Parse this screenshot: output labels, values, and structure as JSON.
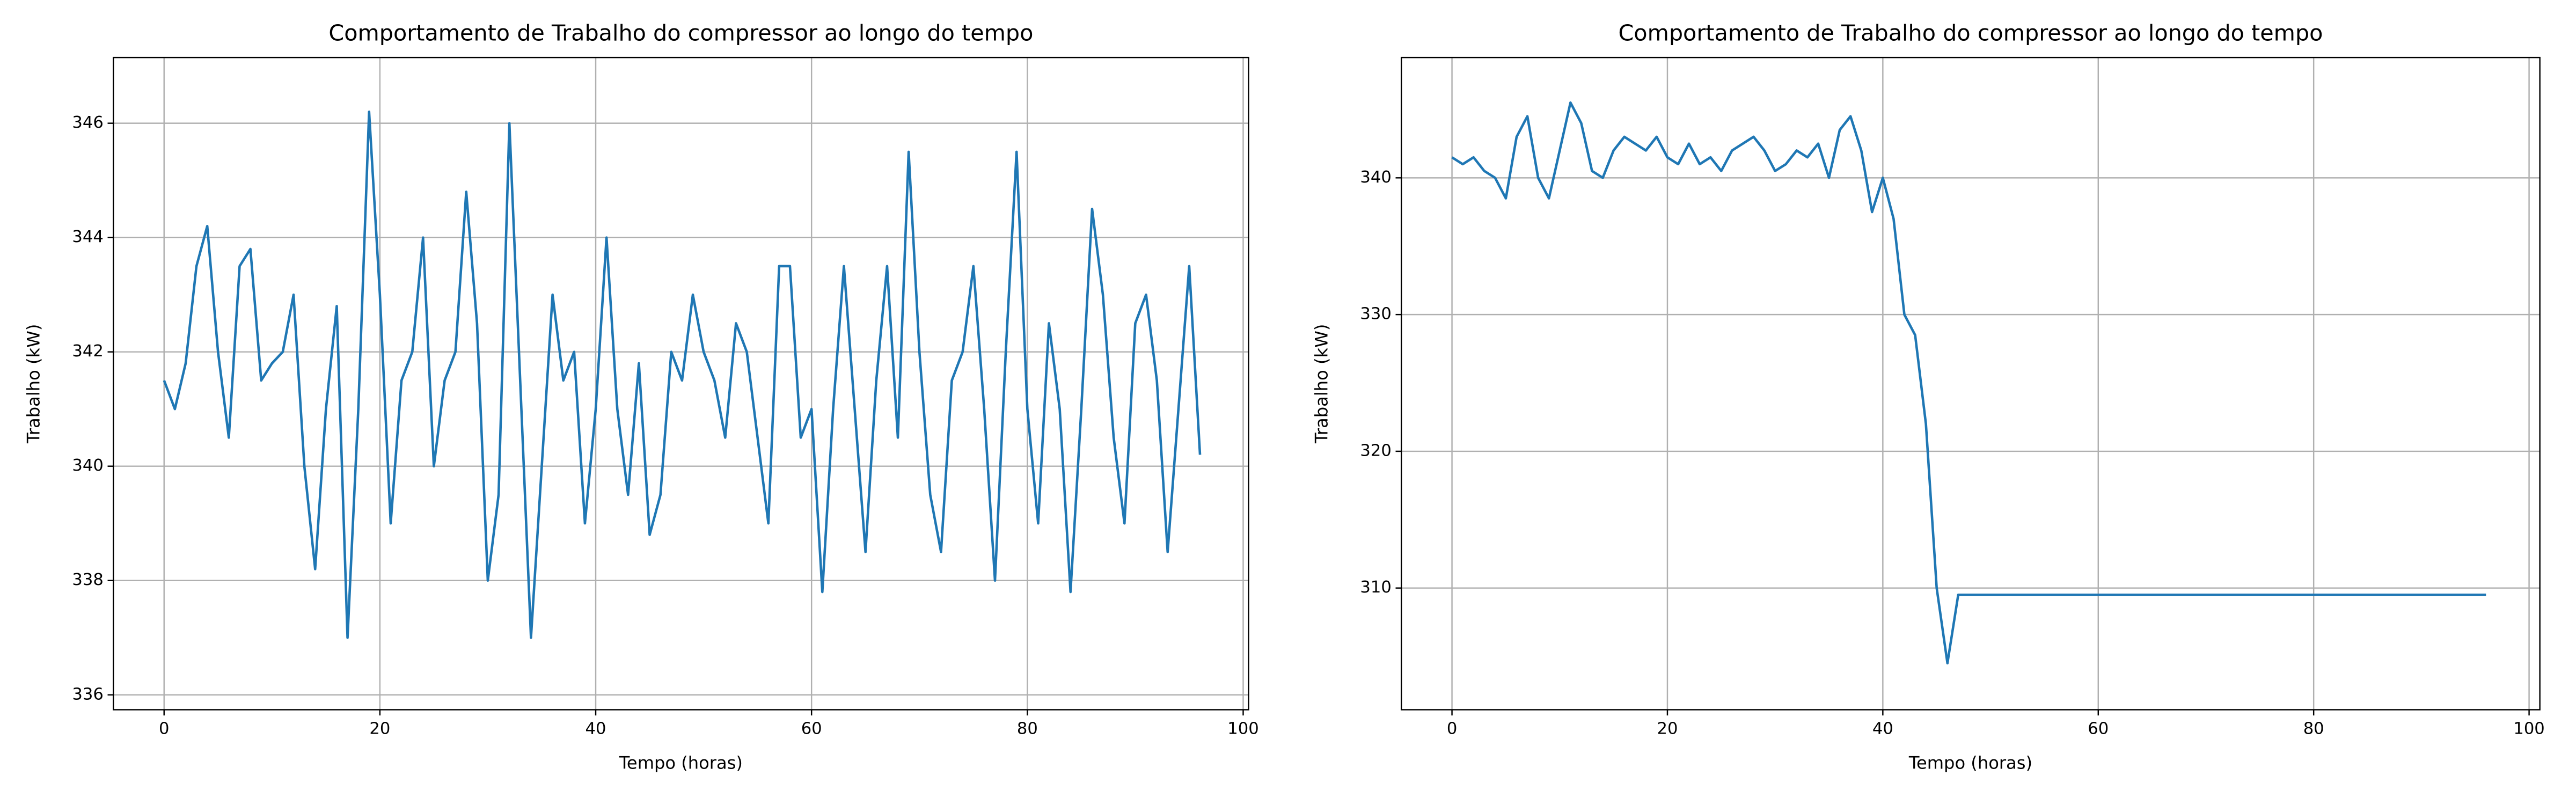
{
  "chart_data": [
    {
      "type": "line",
      "title": "Comportamento de Trabalho do compressor ao longo do tempo",
      "xlabel": "Tempo (horas)",
      "ylabel": "Trabalho (kW)",
      "x": [
        0,
        1,
        2,
        3,
        4,
        5,
        6,
        7,
        8,
        9,
        10,
        11,
        12,
        13,
        14,
        15,
        16,
        17,
        18,
        19,
        20,
        21,
        22,
        23,
        24,
        25,
        26,
        27,
        28,
        29,
        30,
        31,
        32,
        33,
        34,
        35,
        36,
        37,
        38,
        39,
        40,
        41,
        42,
        43,
        44,
        45,
        46,
        47,
        48,
        49,
        50,
        51,
        52,
        53,
        54,
        55,
        56,
        57,
        58,
        59,
        60,
        61,
        62,
        63,
        64,
        65,
        66,
        67,
        68,
        69,
        70,
        71,
        72,
        73,
        74,
        75,
        76,
        77,
        78,
        79,
        80,
        81,
        82,
        83,
        84,
        85,
        86,
        87,
        88,
        89,
        90,
        91,
        92,
        93,
        94,
        95,
        96
      ],
      "series": [
        {
          "color": "#1f77b4",
          "values": [
            341.5,
            341,
            341.8,
            343.5,
            344.2,
            342,
            340.5,
            343.5,
            343.8,
            341.5,
            341.8,
            342,
            343,
            340,
            338.2,
            341,
            342.8,
            337,
            341,
            346.2,
            343,
            339,
            341.5,
            342,
            344,
            340,
            341.5,
            342,
            344.8,
            342.5,
            338,
            339.5,
            346,
            341.5,
            337,
            340,
            343,
            341.5,
            342,
            339,
            341,
            344,
            341,
            339.5,
            341.8,
            338.8,
            339.5,
            342,
            341.5,
            343,
            342,
            341.5,
            340.5,
            342.5,
            342,
            340.5,
            339,
            343.5,
            343.5,
            340.5,
            341,
            337.8,
            341,
            343.5,
            341,
            338.5,
            341.5,
            343.5,
            340.5,
            345.5,
            342,
            339.5,
            338.5,
            341.5,
            342,
            343.5,
            341,
            338,
            342,
            345.5,
            341,
            339,
            342.5,
            341,
            337.8,
            341,
            344.5,
            343,
            340.5,
            339,
            342.5,
            343,
            341.5,
            338.5,
            341,
            343.5,
            340.2
          ]
        }
      ],
      "xlim": [
        -4.7,
        100.5
      ],
      "ylim": [
        335.74,
        347.15
      ],
      "xticks": [
        0,
        20,
        40,
        60,
        80,
        100
      ],
      "yticks": [
        336,
        338,
        340,
        342,
        344,
        346
      ],
      "grid": true
    },
    {
      "type": "line",
      "title": "Comportamento de Trabalho do compressor ao longo do tempo",
      "xlabel": "Tempo (horas)",
      "ylabel": "Trabalho (kW)",
      "x": [
        0,
        1,
        2,
        3,
        4,
        5,
        6,
        7,
        8,
        9,
        10,
        11,
        12,
        13,
        14,
        15,
        16,
        17,
        18,
        19,
        20,
        21,
        22,
        23,
        24,
        25,
        26,
        27,
        28,
        29,
        30,
        31,
        32,
        33,
        34,
        35,
        36,
        37,
        38,
        39,
        40,
        41,
        42,
        43,
        44,
        45,
        46,
        47,
        48,
        49,
        50,
        51,
        52,
        53,
        54,
        55,
        56,
        57,
        58,
        59,
        60,
        61,
        62,
        63,
        64,
        65,
        66,
        67,
        68,
        69,
        70,
        71,
        72,
        73,
        74,
        75,
        76,
        77,
        78,
        79,
        80,
        81,
        82,
        83,
        84,
        85,
        86,
        87,
        88,
        89,
        90,
        91,
        92,
        93,
        94,
        95,
        96
      ],
      "series": [
        {
          "color": "#1f77b4",
          "values": [
            341.5,
            341,
            341.5,
            340.5,
            340,
            338.5,
            343,
            344.5,
            340,
            338.5,
            342,
            345.5,
            344,
            340.5,
            340,
            342,
            343,
            342.5,
            342,
            343,
            341.5,
            341,
            342.5,
            341,
            341.5,
            340.5,
            342,
            342.5,
            343,
            342,
            340.5,
            341,
            342,
            341.5,
            342.5,
            340,
            343.5,
            344.5,
            342,
            337.5,
            340,
            337,
            330,
            328.5,
            322,
            310,
            304.5,
            309.5,
            309.5,
            309.5,
            309.5,
            309.5,
            309.5,
            309.5,
            309.5,
            309.5,
            309.5,
            309.5,
            309.5,
            309.5,
            309.5,
            309.5,
            309.5,
            309.5,
            309.5,
            309.5,
            309.5,
            309.5,
            309.5,
            309.5,
            309.5,
            309.5,
            309.5,
            309.5,
            309.5,
            309.5,
            309.5,
            309.5,
            309.5,
            309.5,
            309.5,
            309.5,
            309.5,
            309.5,
            309.5,
            309.5,
            309.5,
            309.5,
            309.5,
            309.5,
            309.5,
            309.5,
            309.5,
            309.5,
            309.5,
            309.5,
            309.5
          ]
        }
      ],
      "xlim": [
        -4.7,
        101
      ],
      "ylim": [
        301.1,
        348.8
      ],
      "xticks": [
        0,
        20,
        40,
        60,
        80,
        100
      ],
      "yticks": [
        310,
        320,
        330,
        340
      ],
      "grid": true
    }
  ]
}
